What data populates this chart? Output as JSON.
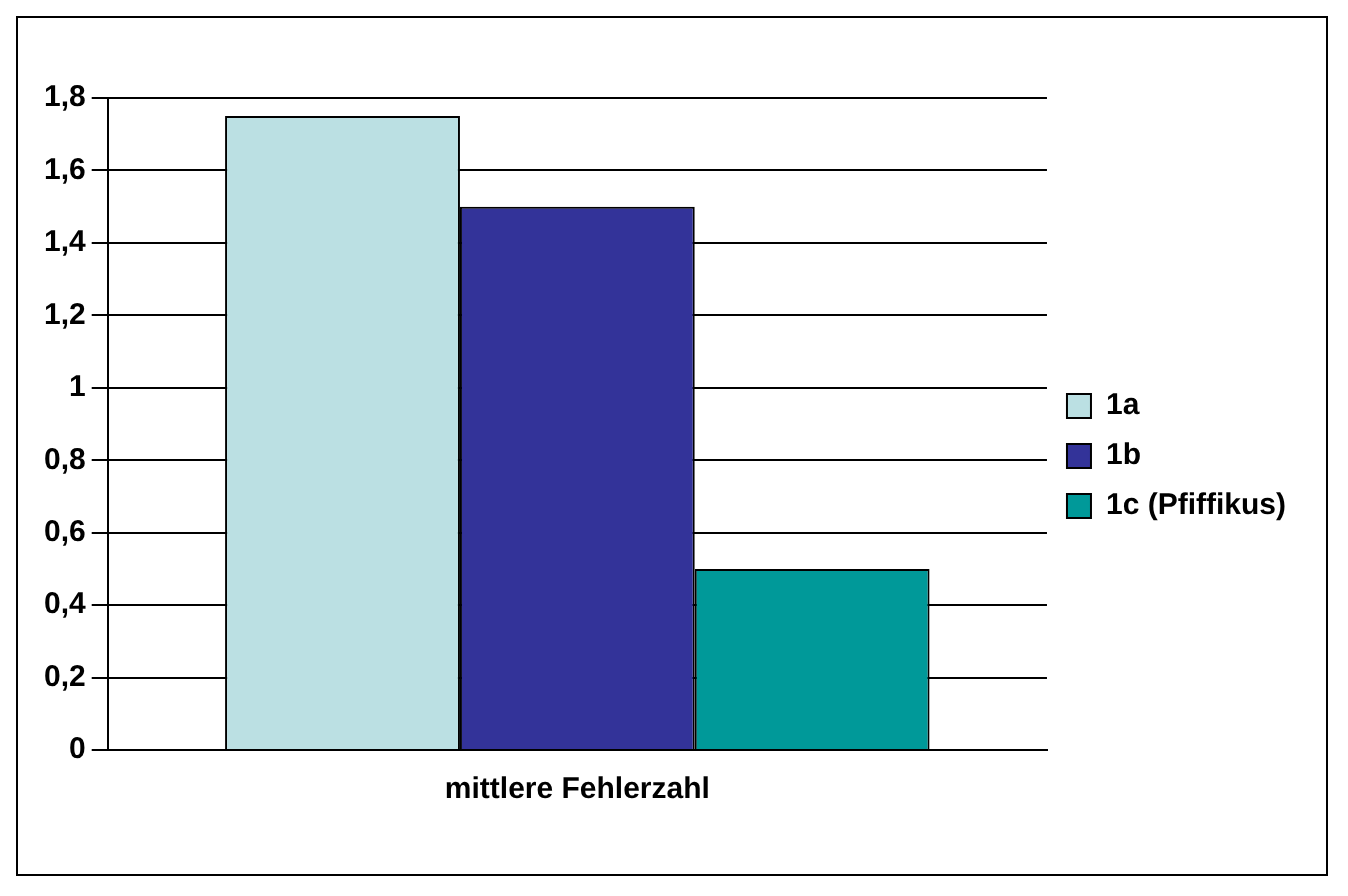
{
  "chart_data": {
    "type": "bar",
    "categories": [
      "mittlere Fehlerzahl"
    ],
    "series": [
      {
        "name": "1a",
        "color": "#bbe0e3",
        "values": [
          1.75
        ]
      },
      {
        "name": "1b",
        "color": "#333399",
        "values": [
          1.5
        ]
      },
      {
        "name": "1c (Pfiffikus)",
        "color": "#009999",
        "values": [
          0.5
        ]
      }
    ],
    "ylim": [
      0,
      1.8
    ],
    "yticks": [
      0,
      {
        "value": 0.2,
        "label": "0,2"
      },
      {
        "value": 0.4,
        "label": "0,4"
      },
      {
        "value": 0.6,
        "label": "0,6"
      },
      {
        "value": 0.8,
        "label": "0,8"
      },
      1,
      {
        "value": 1.2,
        "label": "1,2"
      },
      {
        "value": 1.4,
        "label": "1,4"
      },
      {
        "value": 1.6,
        "label": "1,6"
      },
      {
        "value": 1.8,
        "label": "1,8"
      }
    ],
    "grid": "y",
    "legend": "right"
  }
}
